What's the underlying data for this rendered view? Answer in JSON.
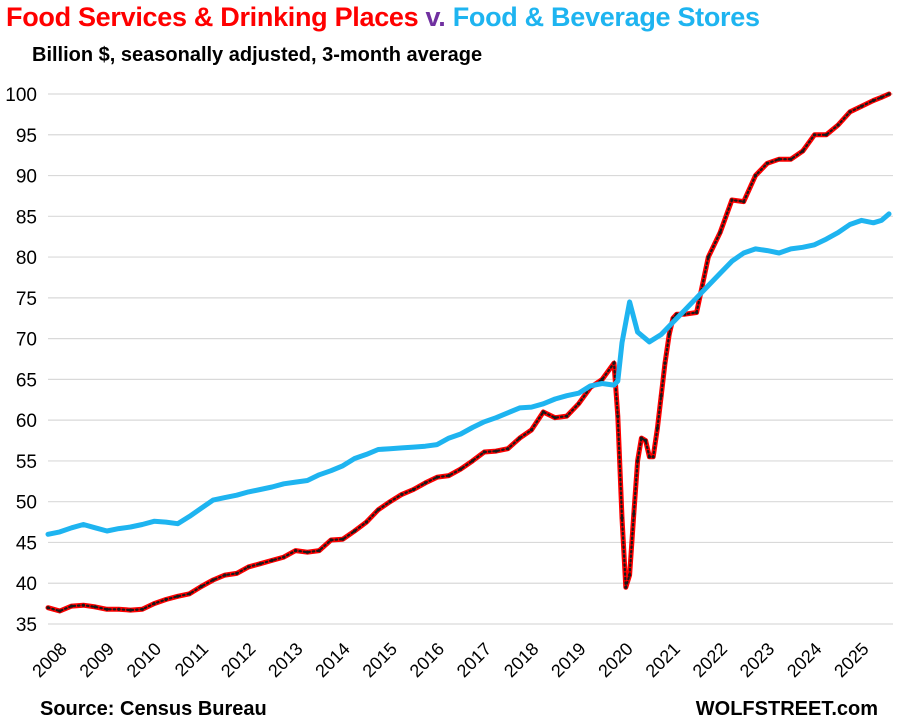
{
  "header": {
    "title_part1": "Food Services & Drinking Places",
    "title_v": " v. ",
    "title_part2": "Food & Beverage Stores",
    "subtitle": "Billion $, seasonally adjusted, 3-month average"
  },
  "footer": {
    "source": "Source: Census Bureau",
    "brand": "WOLFSTREET.com"
  },
  "colors": {
    "food_services": "#ff0000",
    "title_v": "#7030a0",
    "food_stores": "#1eb4f0",
    "grid": "#d9d9d9",
    "marker": "#1a1a1a"
  },
  "chart_data": {
    "type": "line",
    "title": "Food Services & Drinking Places v. Food & Beverage Stores",
    "ylabel": "Billion $, seasonally adjusted, 3-month average",
    "xlabel": "",
    "ylim": [
      35,
      100
    ],
    "xlim": [
      2008,
      2025.83
    ],
    "yticks": [
      35,
      40,
      45,
      50,
      55,
      60,
      65,
      70,
      75,
      80,
      85,
      90,
      95,
      100
    ],
    "xticks": [
      "2008",
      "2009",
      "2010",
      "2011",
      "2012",
      "2013",
      "2014",
      "2015",
      "2016",
      "2017",
      "2018",
      "2019",
      "2020",
      "2021",
      "2022",
      "2023",
      "2024",
      "2025"
    ],
    "grid": true,
    "series": [
      {
        "name": "Food Services & Drinking Places",
        "color": "#ff0000",
        "x": [
          2008.0,
          2008.25,
          2008.5,
          2008.75,
          2009.0,
          2009.25,
          2009.5,
          2009.75,
          2010.0,
          2010.25,
          2010.5,
          2010.75,
          2011.0,
          2011.25,
          2011.5,
          2011.75,
          2012.0,
          2012.25,
          2012.5,
          2012.75,
          2013.0,
          2013.25,
          2013.5,
          2013.75,
          2014.0,
          2014.25,
          2014.5,
          2014.75,
          2015.0,
          2015.25,
          2015.5,
          2015.75,
          2016.0,
          2016.25,
          2016.5,
          2016.75,
          2017.0,
          2017.25,
          2017.5,
          2017.75,
          2018.0,
          2018.25,
          2018.5,
          2018.75,
          2019.0,
          2019.25,
          2019.5,
          2019.75,
          2020.0,
          2020.08,
          2020.17,
          2020.25,
          2020.33,
          2020.42,
          2020.5,
          2020.58,
          2020.67,
          2020.75,
          2020.83,
          2020.92,
          2021.0,
          2021.08,
          2021.17,
          2021.25,
          2021.33,
          2021.5,
          2021.75,
          2022.0,
          2022.25,
          2022.5,
          2022.75,
          2023.0,
          2023.25,
          2023.5,
          2023.75,
          2024.0,
          2024.25,
          2024.5,
          2024.75,
          2025.0,
          2025.25,
          2025.5,
          2025.67,
          2025.83
        ],
        "values": [
          37.0,
          36.6,
          37.2,
          37.3,
          37.1,
          36.8,
          36.8,
          36.7,
          36.8,
          37.5,
          38.0,
          38.4,
          38.7,
          39.6,
          40.4,
          41.0,
          41.2,
          42.0,
          42.4,
          42.8,
          43.2,
          44.0,
          43.8,
          44.0,
          45.3,
          45.4,
          46.4,
          47.5,
          49.0,
          50.0,
          50.9,
          51.5,
          52.3,
          53.0,
          53.2,
          54.0,
          55.0,
          56.1,
          56.2,
          56.5,
          57.8,
          58.8,
          61.0,
          60.3,
          60.5,
          62.0,
          64.0,
          65.0,
          67.0,
          60.5,
          48.0,
          39.5,
          41.0,
          48.5,
          55.0,
          57.8,
          57.5,
          55.5,
          55.5,
          59.0,
          63.0,
          67.0,
          70.5,
          72.5,
          73.0,
          73.0,
          73.2,
          80.0,
          83.0,
          87.0,
          86.8,
          90.0,
          91.5,
          92.0,
          92.0,
          93.0,
          95.0,
          95.0,
          96.2,
          97.8,
          98.5,
          99.2,
          99.6,
          100.0
        ]
      },
      {
        "name": "Food & Beverage Stores",
        "color": "#1eb4f0",
        "x": [
          2008.0,
          2008.25,
          2008.5,
          2008.75,
          2009.0,
          2009.25,
          2009.5,
          2009.75,
          2010.0,
          2010.25,
          2010.5,
          2010.75,
          2011.0,
          2011.25,
          2011.5,
          2011.75,
          2012.0,
          2012.25,
          2012.5,
          2012.75,
          2013.0,
          2013.25,
          2013.5,
          2013.75,
          2014.0,
          2014.25,
          2014.5,
          2014.75,
          2015.0,
          2015.25,
          2015.5,
          2015.75,
          2016.0,
          2016.25,
          2016.5,
          2016.75,
          2017.0,
          2017.25,
          2017.5,
          2017.75,
          2018.0,
          2018.25,
          2018.5,
          2018.75,
          2019.0,
          2019.25,
          2019.5,
          2019.75,
          2020.0,
          2020.08,
          2020.17,
          2020.25,
          2020.33,
          2020.5,
          2020.75,
          2021.0,
          2021.25,
          2021.5,
          2021.75,
          2022.0,
          2022.25,
          2022.5,
          2022.75,
          2023.0,
          2023.25,
          2023.5,
          2023.75,
          2024.0,
          2024.25,
          2024.5,
          2024.75,
          2025.0,
          2025.25,
          2025.5,
          2025.67,
          2025.83
        ],
        "values": [
          46.0,
          46.3,
          46.8,
          47.2,
          46.8,
          46.4,
          46.7,
          46.9,
          47.2,
          47.6,
          47.5,
          47.3,
          48.2,
          49.2,
          50.2,
          50.5,
          50.8,
          51.2,
          51.5,
          51.8,
          52.2,
          52.4,
          52.6,
          53.3,
          53.8,
          54.4,
          55.3,
          55.8,
          56.4,
          56.5,
          56.6,
          56.7,
          56.8,
          57.0,
          57.8,
          58.3,
          59.1,
          59.8,
          60.3,
          60.9,
          61.5,
          61.6,
          62.0,
          62.6,
          63.0,
          63.3,
          64.2,
          64.5,
          64.3,
          64.8,
          69.5,
          72.0,
          74.5,
          70.8,
          69.6,
          70.5,
          72.0,
          73.5,
          75.0,
          76.5,
          78.0,
          79.5,
          80.5,
          81.0,
          80.8,
          80.5,
          81.0,
          81.2,
          81.5,
          82.2,
          83.0,
          84.0,
          84.5,
          84.2,
          84.5,
          85.3
        ]
      }
    ]
  }
}
